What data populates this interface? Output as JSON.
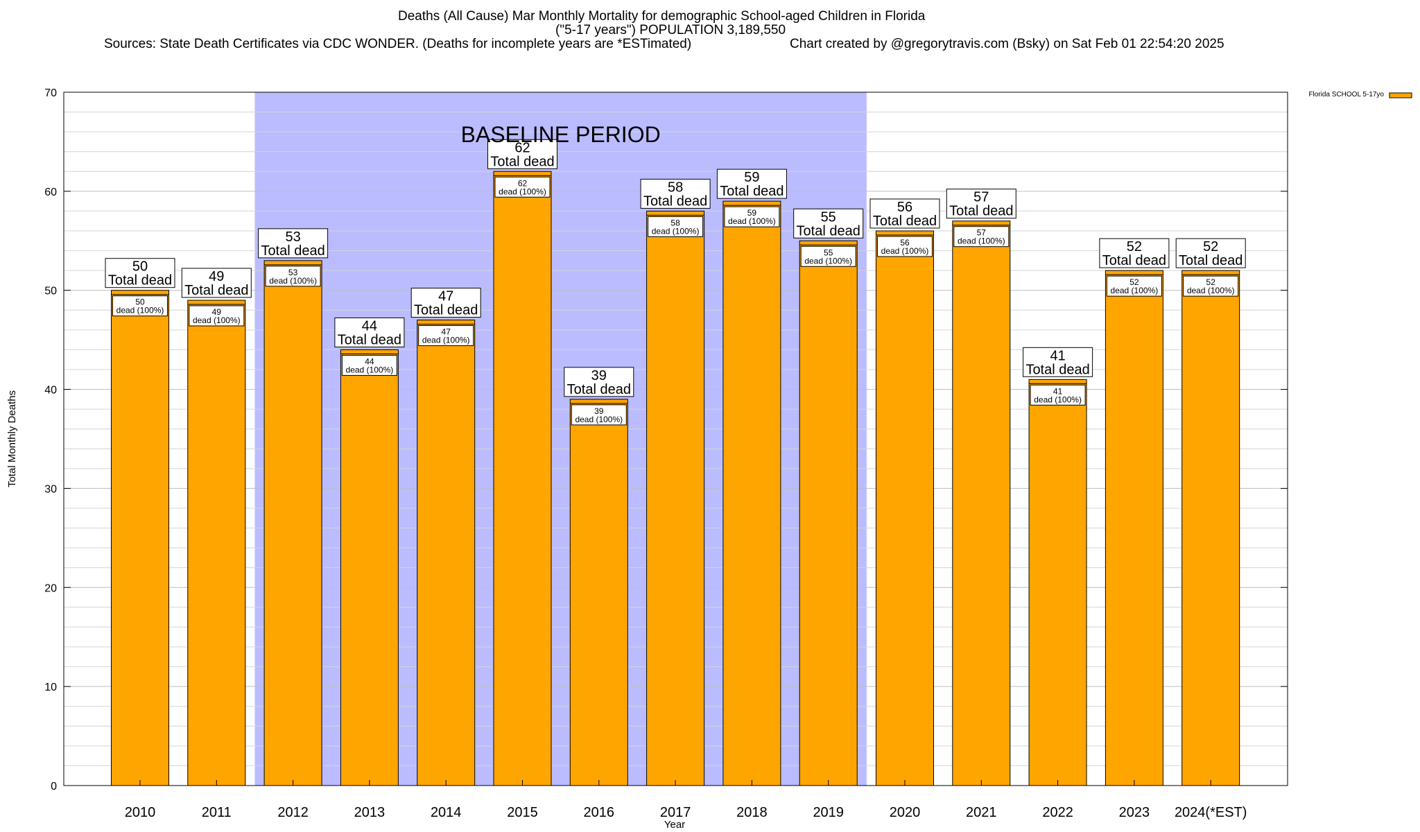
{
  "header": {
    "title": "Deaths (All Cause) Mar Monthly Mortality for demographic School-aged Children in Florida",
    "population": "(\"5-17 years\") POPULATION 3,189,550",
    "sources": "Sources: State Death Certificates via CDC WONDER. (Deaths for incomplete years are *ESTimated)",
    "credit": "Chart created by @gregorytravis.com (Bsky) on Sat Feb 01 22:54:20 2025"
  },
  "chart_data": {
    "type": "bar",
    "xlabel": "Year",
    "ylabel": "Total Monthly Deaths",
    "ylim": [
      0,
      70
    ],
    "yticks": [
      0,
      10,
      20,
      30,
      40,
      50,
      60,
      70
    ],
    "grid": true,
    "legend_position": "top-right",
    "categories": [
      "2010",
      "2011",
      "2012",
      "2013",
      "2014",
      "2015",
      "2016",
      "2017",
      "2018",
      "2019",
      "2020",
      "2021",
      "2022",
      "2023",
      "2024(*EST)"
    ],
    "series": [
      {
        "name": "Florida SCHOOL 5-17yo",
        "color": "#ffa500",
        "values": [
          50,
          49,
          53,
          44,
          47,
          62,
          39,
          58,
          59,
          55,
          56,
          57,
          41,
          52,
          52
        ]
      }
    ],
    "baseline": {
      "label": "BASELINE PERIOD",
      "start": "2012",
      "end": "2019",
      "color": "#bbbcff"
    },
    "total_label": "Total dead",
    "inner_label": "dead (100%)"
  }
}
